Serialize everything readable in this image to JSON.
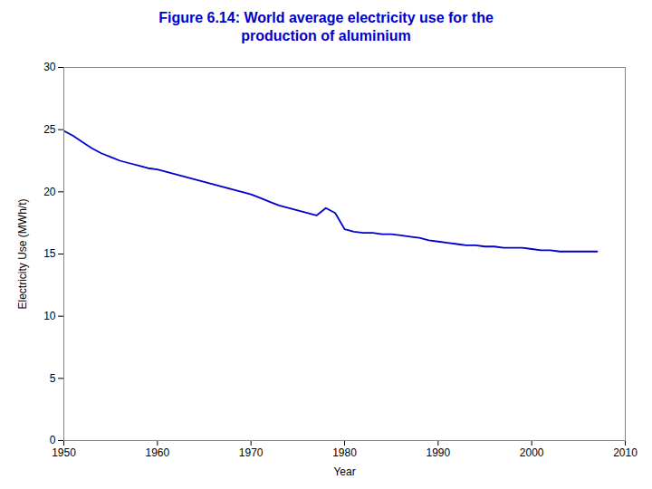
{
  "chart_data": {
    "type": "line",
    "title": "Figure 6.14: World average electricity use for the\nproduction of aluminium",
    "xlabel": "Year",
    "ylabel": "Electricity Use (MWh/t)",
    "color": "#0000CC",
    "xlim": [
      1950,
      2010
    ],
    "ylim": [
      0,
      30
    ],
    "xticks": [
      1950,
      1960,
      1970,
      1980,
      1990,
      2000,
      2010
    ],
    "yticks": [
      0,
      5,
      10,
      15,
      20,
      25,
      30
    ],
    "grid": false,
    "x": [
      1950,
      1951,
      1952,
      1953,
      1954,
      1955,
      1956,
      1957,
      1958,
      1959,
      1960,
      1961,
      1962,
      1963,
      1964,
      1965,
      1966,
      1967,
      1968,
      1969,
      1970,
      1971,
      1972,
      1973,
      1974,
      1975,
      1976,
      1977,
      1978,
      1979,
      1980,
      1981,
      1982,
      1983,
      1984,
      1985,
      1986,
      1987,
      1988,
      1989,
      1990,
      1991,
      1992,
      1993,
      1994,
      1995,
      1996,
      1997,
      1998,
      1999,
      2000,
      2001,
      2002,
      2003,
      2004,
      2005,
      2006,
      2007
    ],
    "values": [
      24.9,
      24.5,
      24.0,
      23.5,
      23.1,
      22.8,
      22.5,
      22.3,
      22.1,
      21.9,
      21.8,
      21.6,
      21.4,
      21.2,
      21.0,
      20.8,
      20.6,
      20.4,
      20.2,
      20.0,
      19.8,
      19.5,
      19.2,
      18.9,
      18.7,
      18.5,
      18.3,
      18.1,
      18.7,
      18.3,
      17.0,
      16.8,
      16.7,
      16.7,
      16.6,
      16.6,
      16.5,
      16.4,
      16.3,
      16.1,
      16.0,
      15.9,
      15.8,
      15.7,
      15.7,
      15.6,
      15.6,
      15.5,
      15.5,
      15.5,
      15.4,
      15.3,
      15.3,
      15.2,
      15.2,
      15.2,
      15.2,
      15.2
    ]
  }
}
